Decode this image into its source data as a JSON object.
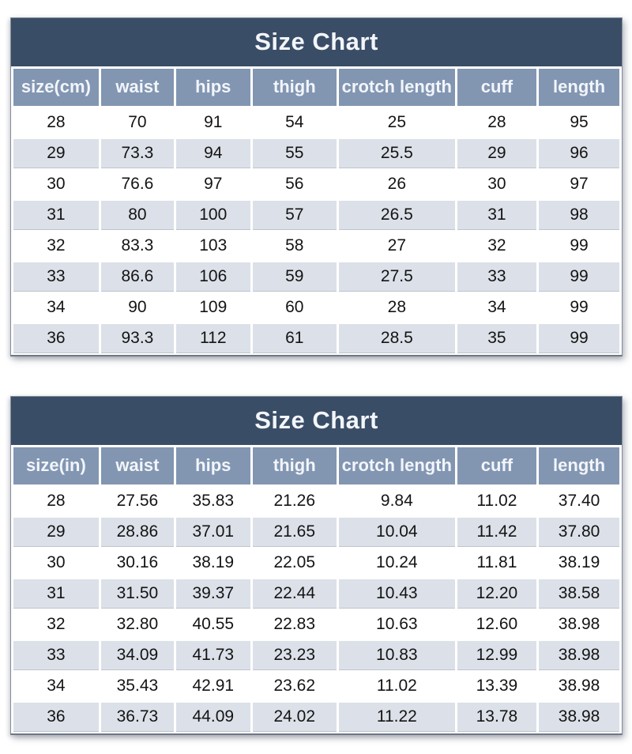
{
  "page_title": "Size Chart",
  "colors": {
    "title_bg": "#3a4d66",
    "header_bg": "#8296b2",
    "header_text": "#f2f5fa",
    "row_bg": "#ffffff",
    "row_alt_bg": "#dce0e8",
    "cell_text": "#141414"
  },
  "chart_data": [
    {
      "type": "table",
      "title": "Size Chart",
      "unit": "cm",
      "columns": [
        "size(cm)",
        "waist",
        "hips",
        "thigh",
        "crotch length",
        "cuff",
        "length"
      ],
      "rows": [
        [
          "28",
          "70",
          "91",
          "54",
          "25",
          "28",
          "95"
        ],
        [
          "29",
          "73.3",
          "94",
          "55",
          "25.5",
          "29",
          "96"
        ],
        [
          "30",
          "76.6",
          "97",
          "56",
          "26",
          "30",
          "97"
        ],
        [
          "31",
          "80",
          "100",
          "57",
          "26.5",
          "31",
          "98"
        ],
        [
          "32",
          "83.3",
          "103",
          "58",
          "27",
          "32",
          "99"
        ],
        [
          "33",
          "86.6",
          "106",
          "59",
          "27.5",
          "33",
          "99"
        ],
        [
          "34",
          "90",
          "109",
          "60",
          "28",
          "34",
          "99"
        ],
        [
          "36",
          "93.3",
          "112",
          "61",
          "28.5",
          "35",
          "99"
        ]
      ]
    },
    {
      "type": "table",
      "title": "Size Chart",
      "unit": "in",
      "columns": [
        "size(in)",
        "waist",
        "hips",
        "thigh",
        "crotch length",
        "cuff",
        "length"
      ],
      "rows": [
        [
          "28",
          "27.56",
          "35.83",
          "21.26",
          "9.84",
          "11.02",
          "37.40"
        ],
        [
          "29",
          "28.86",
          "37.01",
          "21.65",
          "10.04",
          "11.42",
          "37.80"
        ],
        [
          "30",
          "30.16",
          "38.19",
          "22.05",
          "10.24",
          "11.81",
          "38.19"
        ],
        [
          "31",
          "31.50",
          "39.37",
          "22.44",
          "10.43",
          "12.20",
          "38.58"
        ],
        [
          "32",
          "32.80",
          "40.55",
          "22.83",
          "10.63",
          "12.60",
          "38.98"
        ],
        [
          "33",
          "34.09",
          "41.73",
          "23.23",
          "10.83",
          "12.99",
          "38.98"
        ],
        [
          "34",
          "35.43",
          "42.91",
          "23.62",
          "11.02",
          "13.39",
          "38.98"
        ],
        [
          "36",
          "36.73",
          "44.09",
          "24.02",
          "11.22",
          "13.78",
          "38.98"
        ]
      ]
    }
  ]
}
